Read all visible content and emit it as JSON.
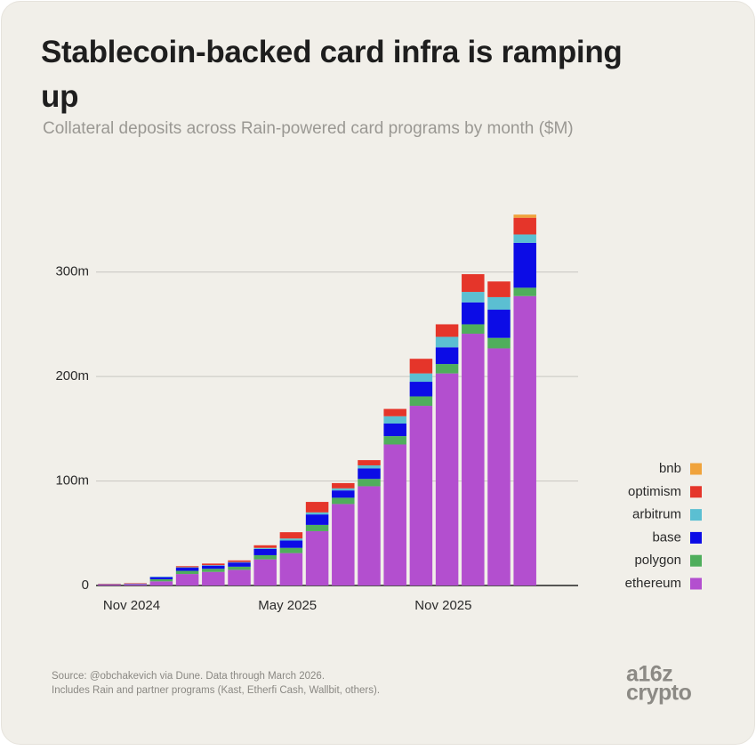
{
  "chart_data": {
    "type": "stacked_bar",
    "title": "Stablecoin-backed card infra is ramping up",
    "subtitle": "Collateral deposits across Rain-powered card programs by month ($M)",
    "categories": [
      "Nov 2024",
      null,
      null,
      null,
      null,
      null,
      "May 2025",
      null,
      null,
      null,
      null,
      null,
      "Nov 2025",
      null,
      null,
      null,
      null
    ],
    "series": [
      {
        "name": "ethereum",
        "color": "#b34fcf",
        "values": [
          1,
          1.2,
          4,
          11,
          13,
          15,
          25,
          31,
          52,
          78,
          95,
          135,
          172,
          203,
          241,
          227,
          277
        ]
      },
      {
        "name": "polygon",
        "color": "#4fae5c",
        "values": [
          0.2,
          0.3,
          2,
          3,
          3,
          3,
          4,
          5,
          6,
          6,
          7,
          8,
          9,
          9,
          9,
          10,
          8
        ]
      },
      {
        "name": "base",
        "color": "#0c0ce6",
        "values": [
          0.2,
          0.3,
          2,
          3,
          3,
          4,
          6,
          7,
          10,
          7,
          10,
          12,
          14,
          16,
          21,
          27,
          43
        ]
      },
      {
        "name": "arbitrum",
        "color": "#5bbfd2",
        "values": [
          0,
          0,
          0.5,
          0.5,
          0.5,
          0.5,
          1,
          2,
          2,
          2,
          3,
          7,
          8,
          10,
          10,
          12,
          8
        ]
      },
      {
        "name": "optimism",
        "color": "#e5352a",
        "values": [
          0.3,
          0.4,
          0,
          1,
          1.5,
          1.5,
          2.5,
          6,
          10,
          5,
          5,
          7,
          14,
          12,
          17,
          15,
          16
        ]
      },
      {
        "name": "bnb",
        "color": "#f0a33c",
        "values": [
          0,
          0,
          0,
          0,
          0,
          0,
          0,
          0,
          0,
          0,
          0,
          0,
          0,
          0,
          0,
          0,
          3
        ]
      }
    ],
    "ylim": [
      0,
      356
    ],
    "yticks": [
      0,
      {
        "value": 100,
        "label": "100m"
      },
      {
        "value": 200,
        "label": "200m"
      },
      {
        "value": 300,
        "label": "300m"
      }
    ],
    "grid": true,
    "legend": "right",
    "source": [
      "Source: @obchakevich via Dune. Data through March 2026.",
      "Includes Rain and partner programs (Kast, Etherfi Cash, Wallbit, others)."
    ],
    "logo": [
      "a16z",
      "crypto"
    ]
  }
}
